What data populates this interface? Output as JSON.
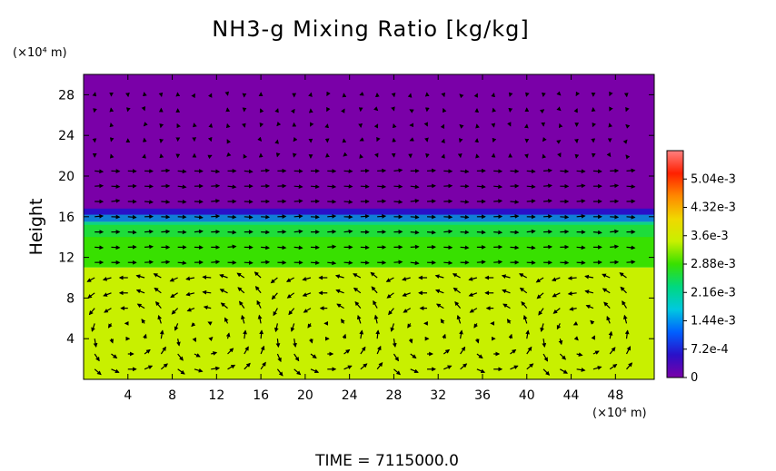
{
  "chart_data": {
    "type": "heatmap",
    "title": "NH3-g Mixing Ratio [kg/kg]",
    "ylabel": "Height",
    "y_unit": "(×10⁴ m)",
    "x_unit": "(×10⁴ m)",
    "xlim": [
      0,
      51.5
    ],
    "ylim": [
      0,
      30
    ],
    "x_ticks": [
      4,
      8,
      12,
      16,
      20,
      24,
      28,
      32,
      36,
      40,
      44,
      48
    ],
    "y_ticks": [
      4,
      8,
      12,
      16,
      20,
      24,
      28
    ],
    "colorbar": {
      "range": [
        0,
        0.00576
      ],
      "tick_labels": [
        "0",
        "7.2e-4",
        "1.44e-3",
        "2.16e-3",
        "2.88e-3",
        "3.6e-3",
        "4.32e-3",
        "5.04e-3"
      ],
      "tick_values": [
        0,
        0.00072,
        0.00144,
        0.00216,
        0.00288,
        0.0036,
        0.00432,
        0.00504
      ],
      "colors": [
        "#7a00a8",
        "#2a10c8",
        "#0060ff",
        "#00c8e0",
        "#00d880",
        "#38e000",
        "#c8f000",
        "#f0d800",
        "#ff8800",
        "#ff2000",
        "#ff8080"
      ]
    },
    "layers": [
      {
        "name": "upper",
        "y_range": [
          16.5,
          30
        ],
        "value": 0
      },
      {
        "name": "transition",
        "y_range": [
          15.5,
          16.8
        ],
        "value": 0.0008
      },
      {
        "name": "middle",
        "y_range": [
          11,
          15.5
        ],
        "value": 0.0029
      },
      {
        "name": "lower",
        "y_range": [
          0,
          11
        ],
        "value": 0.0037
      }
    ],
    "circulation_cells_x_centers": [
      4,
      11,
      22,
      31,
      37,
      45
    ],
    "overlay": "wind vectors"
  },
  "footer": {
    "time_label": "TIME  =  7115000.0"
  }
}
